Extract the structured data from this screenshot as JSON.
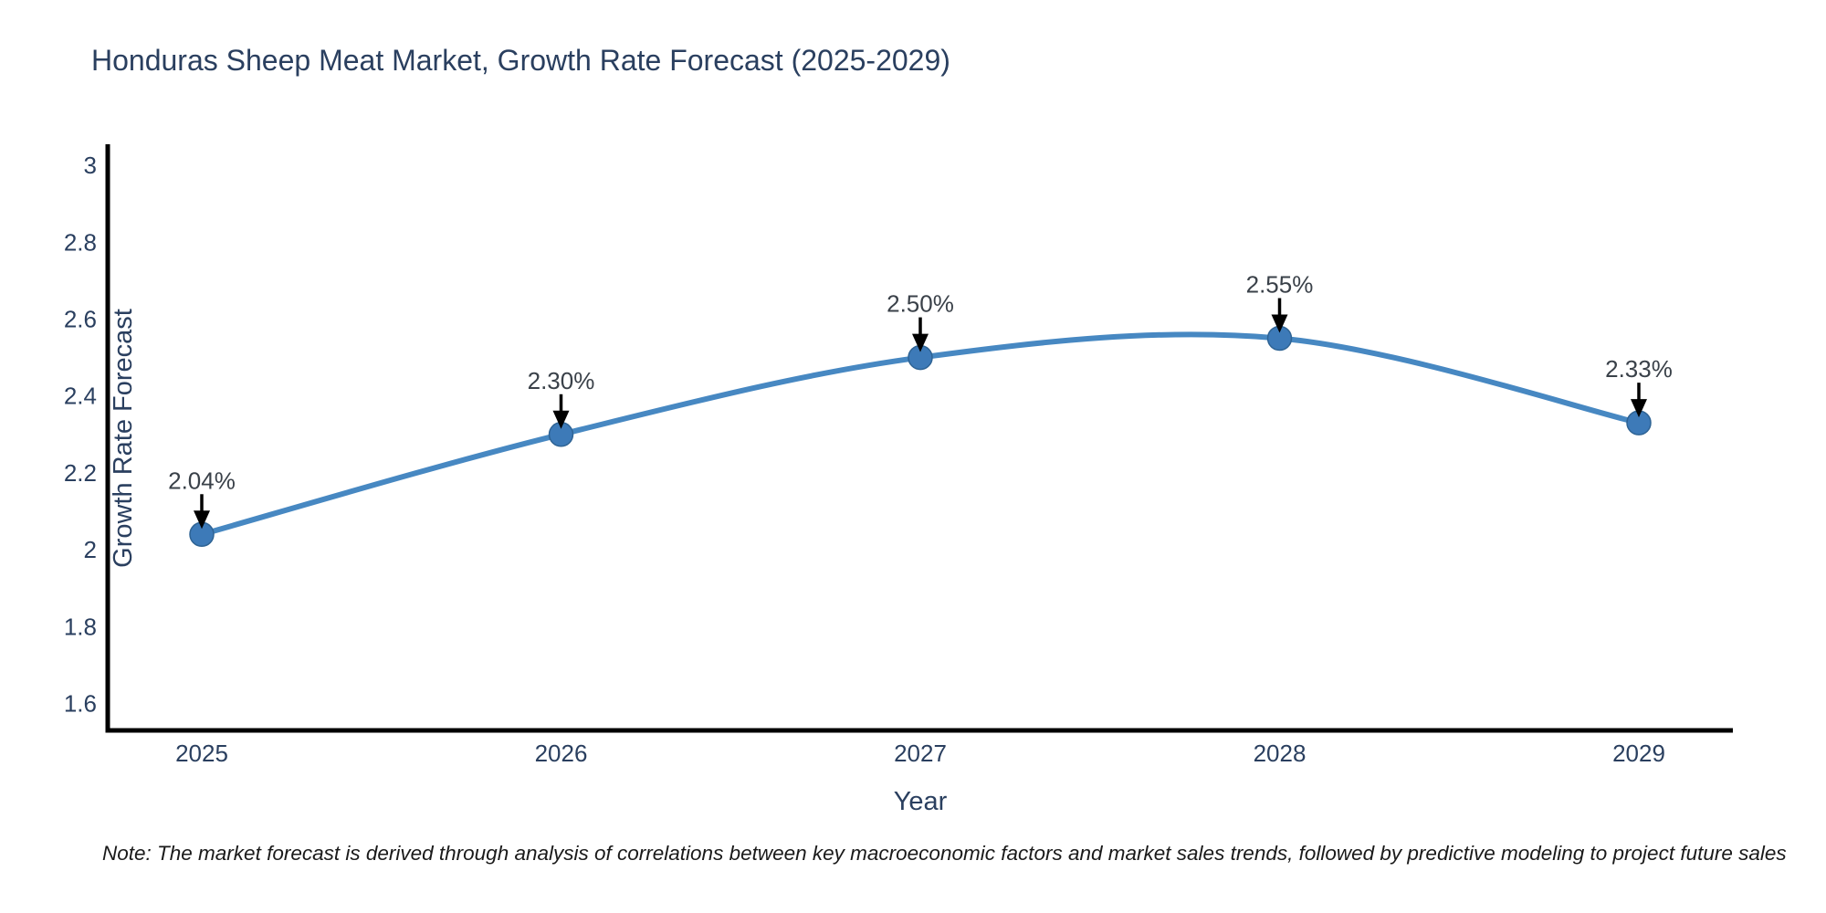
{
  "title": "Honduras Sheep Meat Market, Growth Rate Forecast (2025-2029)",
  "note": "Note: The market forecast is derived through analysis of correlations between key macroeconomic factors and market sales trends, followed by predictive modeling to project future sales",
  "chart_data": {
    "type": "line",
    "line_shape": "spline",
    "title": "Honduras Sheep Meat Market, Growth Rate Forecast (2025-2029)",
    "xlabel": "Year",
    "ylabel": "Growth Rate Forecast",
    "x": [
      2025,
      2026,
      2027,
      2028,
      2029
    ],
    "series": [
      {
        "name": "Growth Rate Forecast",
        "values": [
          2.04,
          2.3,
          2.5,
          2.55,
          2.33
        ]
      }
    ],
    "point_labels": [
      "2.04%",
      "2.30%",
      "2.50%",
      "2.55%",
      "2.33%"
    ],
    "ylim": [
      1.53,
      3.05
    ],
    "yticks": [
      3,
      2.8,
      2.6,
      2.4,
      2.2,
      2,
      1.8,
      1.6
    ],
    "grid": false,
    "legend": "none",
    "colors": {
      "line": "#4788c2",
      "marker": "#3d7ab8",
      "marker_edge": "#2e6394",
      "axis_line": "#000000",
      "tick_text": "#2a3f5f",
      "axis_title_text": "#2a3f5f",
      "title_text": "#2a3f5f",
      "annotation_text": "#3a4149",
      "arrow": "#000000"
    }
  }
}
